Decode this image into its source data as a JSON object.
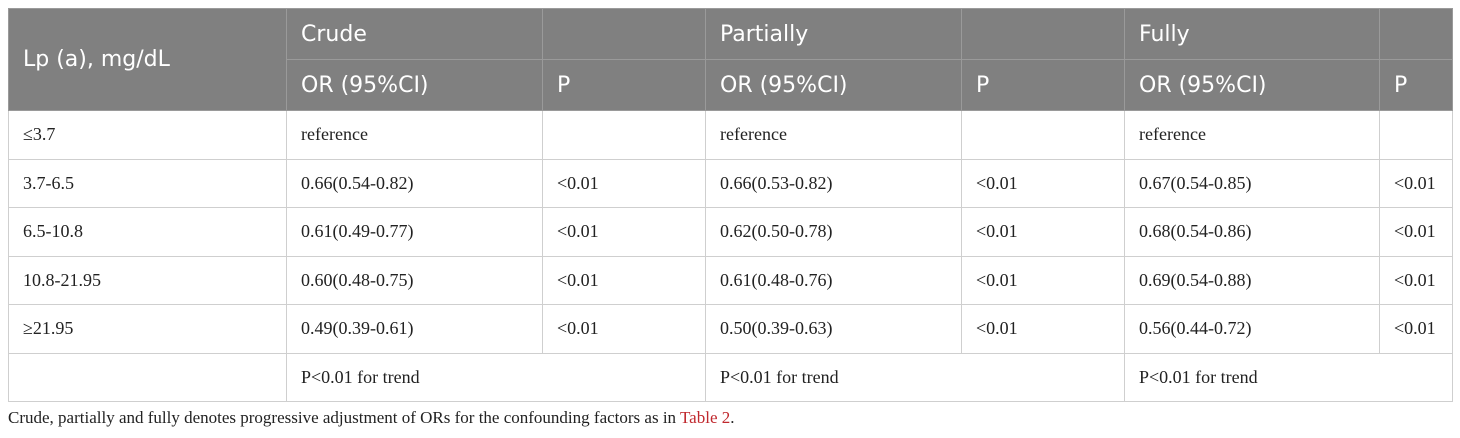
{
  "table": {
    "row_header": "Lp (a), mg/dL",
    "groups": [
      "Crude",
      "Partially",
      "Fully"
    ],
    "subheaders": [
      "OR (95%CI)",
      "P",
      "OR (95%CI)",
      "P",
      "OR (95%CI)",
      "P"
    ],
    "rows": [
      {
        "label": "≤3.7",
        "cells": [
          "reference",
          null,
          "reference",
          null,
          "reference",
          null
        ]
      },
      {
        "label": "3.7-6.5",
        "cells": [
          "0.66(0.54-0.82)",
          "<0.01",
          "0.66(0.53-0.82)",
          "<0.01",
          "0.67(0.54-0.85)",
          "<0.01"
        ]
      },
      {
        "label": "6.5-10.8",
        "cells": [
          "0.61(0.49-0.77)",
          "<0.01",
          "0.62(0.50-0.78)",
          "<0.01",
          "0.68(0.54-0.86)",
          "<0.01"
        ]
      },
      {
        "label": "10.8-21.95",
        "cells": [
          "0.60(0.48-0.75)",
          "<0.01",
          "0.61(0.48-0.76)",
          "<0.01",
          "0.69(0.54-0.88)",
          "<0.01"
        ]
      },
      {
        "label": "≥21.95",
        "cells": [
          "0.49(0.39-0.61)",
          "<0.01",
          "0.50(0.39-0.63)",
          "<0.01",
          "0.56(0.44-0.72)",
          "<0.01"
        ]
      }
    ],
    "trend": [
      "P<0.01 for trend",
      "P<0.01 for trend",
      "P<0.01 for trend"
    ]
  },
  "footnote": {
    "text": "Crude, partially and fully denotes progressive adjustment of ORs for the confounding factors as in ",
    "link": "Table 2",
    "end": "."
  }
}
